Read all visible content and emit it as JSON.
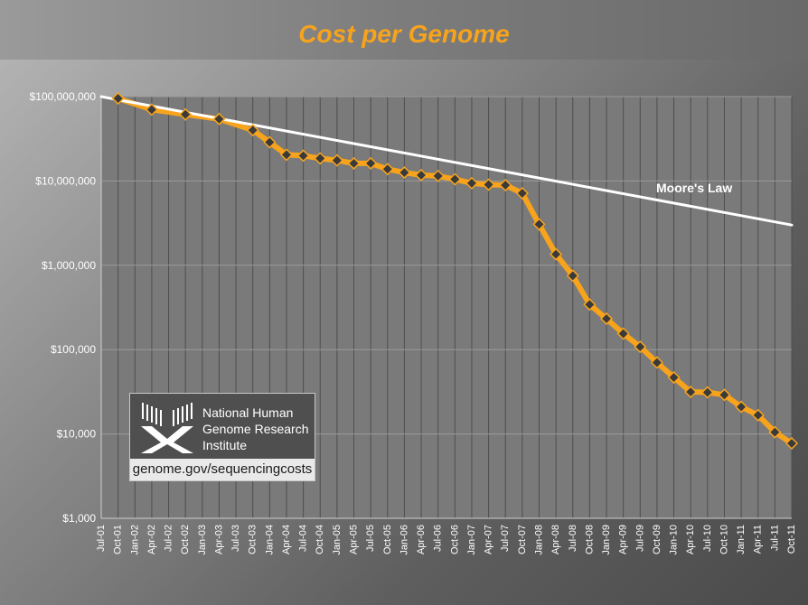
{
  "chart_data": {
    "type": "line",
    "title": "Cost per Genome",
    "xlabel": "",
    "ylabel": "",
    "y_scale": "log",
    "ylim": [
      1000,
      100000000
    ],
    "y_ticks": [
      "$1,000",
      "$10,000",
      "$100,000",
      "$1,000,000",
      "$10,000,000",
      "$100,000,000"
    ],
    "grid": true,
    "categories": [
      "Jul-01",
      "Oct-01",
      "Jan-02",
      "Apr-02",
      "Jul-02",
      "Oct-02",
      "Jan-03",
      "Apr-03",
      "Jul-03",
      "Oct-03",
      "Jan-04",
      "Apr-04",
      "Jul-04",
      "Oct-04",
      "Jan-05",
      "Apr-05",
      "Jul-05",
      "Oct-05",
      "Jan-06",
      "Apr-06",
      "Jul-06",
      "Oct-06",
      "Jan-07",
      "Apr-07",
      "Jul-07",
      "Oct-07",
      "Jan-08",
      "Apr-08",
      "Jul-08",
      "Oct-08",
      "Jan-09",
      "Apr-09",
      "Jul-09",
      "Oct-09",
      "Jan-10",
      "Apr-10",
      "Jul-10",
      "Oct-10",
      "Jan-11",
      "Apr-11",
      "Jul-11",
      "Oct-11"
    ],
    "x_tick_labels": [
      "Jul-01",
      "Oct-01",
      "Jan-02",
      "Apr-02",
      "Jul-02",
      "Oct-02",
      "Jan-03",
      "Apr-03",
      "Jul-03",
      "Oct-03",
      "Jan-04",
      "Apr-04",
      "Jul-04",
      "Oct-04",
      "Jan-05",
      "Apr-05",
      "Jul-05",
      "Oct-05",
      "Jan-06",
      "Apr-06",
      "Jul-06",
      "Oct-06",
      "Jan-07",
      "Apr-07",
      "Jul-07",
      "Oct-07",
      "Jan-08",
      "Apr-08",
      "Jul-08",
      "Oct-08",
      "Jan-09",
      "Apr-09",
      "Jul-09",
      "Oct-09",
      "Jan-10",
      "Apr-10",
      "Jul-10",
      "Oct-10",
      "Jan-11",
      "Apr-11",
      "Jul-11",
      "Oct-11"
    ],
    "series": [
      {
        "name": "",
        "color": "#f7a31c",
        "marker_color": "#3a3a3a",
        "points": [
          [
            "Oct-01",
            95263072
          ],
          [
            "Apr-02",
            70175437
          ],
          [
            "Oct-02",
            61448422
          ],
          [
            "Apr-03",
            54213473
          ],
          [
            "Oct-03",
            40000000
          ],
          [
            "Jan-04",
            28780376
          ],
          [
            "Apr-04",
            20442576
          ],
          [
            "Jul-04",
            19934346
          ],
          [
            "Oct-04",
            18519000
          ],
          [
            "Jan-05",
            17534969
          ],
          [
            "Apr-05",
            16159853
          ],
          [
            "Jul-05",
            16180224
          ],
          [
            "Oct-05",
            13801124
          ],
          [
            "Jan-06",
            12585659
          ],
          [
            "Apr-06",
            11732535
          ],
          [
            "Jul-06",
            11455315
          ],
          [
            "Oct-06",
            10474556
          ],
          [
            "Jan-07",
            9408739
          ],
          [
            "Apr-07",
            9047003
          ],
          [
            "Jul-07",
            8927342
          ],
          [
            "Oct-07",
            7147571
          ],
          [
            "Jan-08",
            3063820
          ],
          [
            "Apr-08",
            1352982
          ],
          [
            "Jul-08",
            752080
          ],
          [
            "Oct-08",
            342502
          ],
          [
            "Jan-09",
            232735
          ],
          [
            "Apr-09",
            154714
          ],
          [
            "Jul-09",
            108065
          ],
          [
            "Oct-09",
            70333
          ],
          [
            "Jan-10",
            46774
          ],
          [
            "Apr-10",
            31512
          ],
          [
            "Jul-10",
            31125
          ],
          [
            "Oct-10",
            29091
          ],
          [
            "Jan-11",
            20963
          ],
          [
            "Apr-11",
            16712
          ],
          [
            "Jul-11",
            10497
          ],
          [
            "Oct-11",
            7743
          ]
        ]
      },
      {
        "name": "Moore's Law",
        "color": "#ffffff",
        "points": [
          [
            "Jul-01",
            100000000
          ],
          [
            "Oct-11",
            3000000
          ]
        ]
      }
    ]
  },
  "logo": {
    "org_lines": [
      "National Human",
      "Genome Research",
      "Institute"
    ],
    "url": "genome.gov/sequencingcosts"
  }
}
